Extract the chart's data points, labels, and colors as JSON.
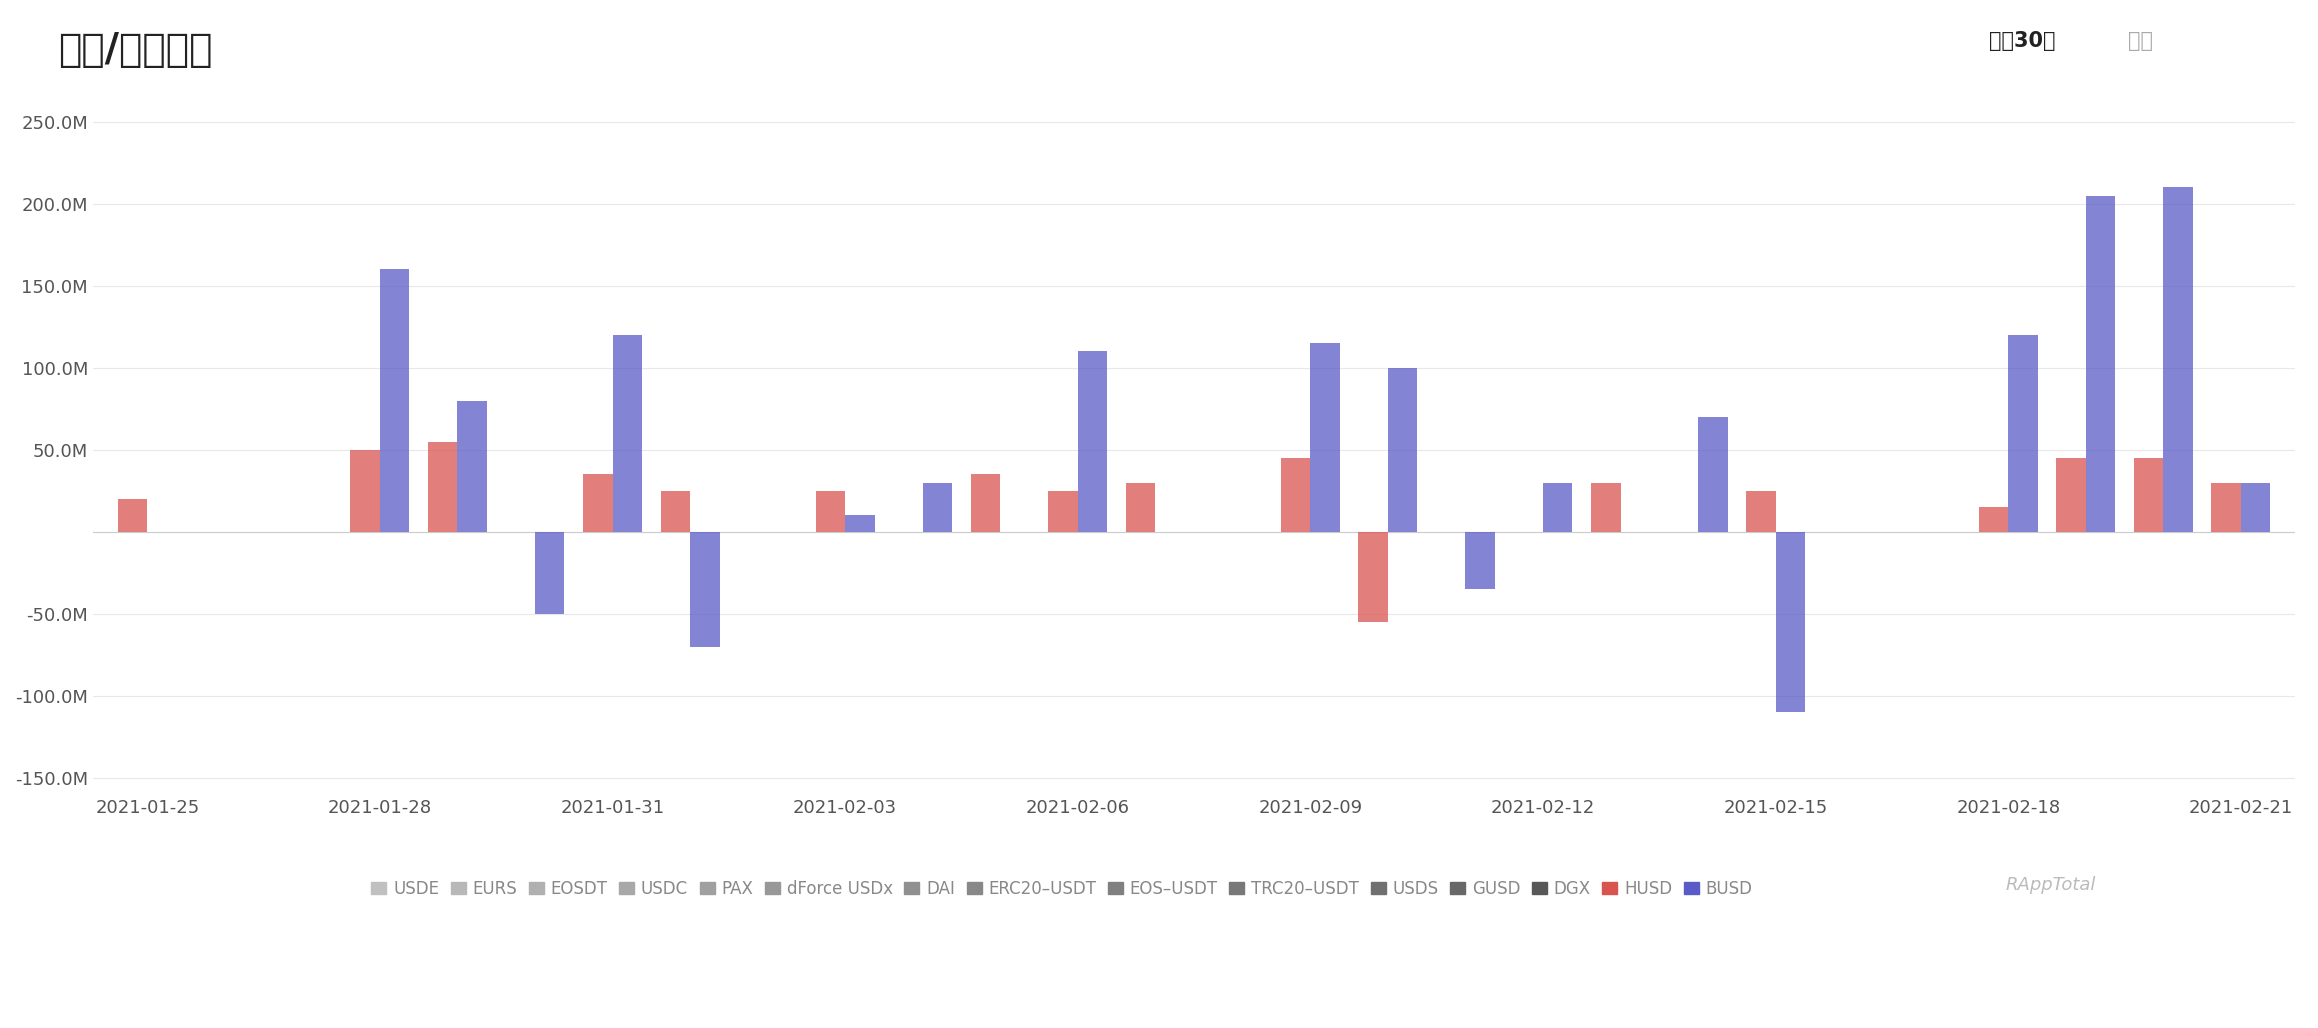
{
  "title": "增发/销毁趋势",
  "top_right_label_active": "最近30天",
  "top_right_label_inactive": "全部",
  "dates": [
    "2021-01-25",
    "2021-01-26",
    "2021-01-27",
    "2021-01-28",
    "2021-01-29",
    "2021-01-30",
    "2021-01-31",
    "2021-02-01",
    "2021-02-02",
    "2021-02-03",
    "2021-02-04",
    "2021-02-05",
    "2021-02-06",
    "2021-02-07",
    "2021-02-08",
    "2021-02-09",
    "2021-02-10",
    "2021-02-11",
    "2021-02-12",
    "2021-02-13",
    "2021-02-14",
    "2021-02-15",
    "2021-02-16",
    "2021-02-17",
    "2021-02-18",
    "2021-02-19",
    "2021-02-20",
    "2021-02-21"
  ],
  "xtick_labels": [
    "2021-01-25",
    "2021-01-28",
    "2021-01-31",
    "2021-02-03",
    "2021-02-06",
    "2021-02-09",
    "2021-02-12",
    "2021-02-15",
    "2021-02-18",
    "2021-02-21"
  ],
  "ylim": [
    -160000000,
    265000000
  ],
  "yticks": [
    -150000000,
    -100000000,
    -50000000,
    0,
    50000000,
    100000000,
    150000000,
    200000000,
    250000000
  ],
  "background_color": "#ffffff",
  "grid_color": "#e8e8e8",
  "husd_color": "#d9534f",
  "busd_color": "#5b5bc8",
  "husd_alpha": 0.75,
  "busd_alpha": 0.75,
  "HUSD": [
    20000000,
    0,
    0,
    50000000,
    55000000,
    0,
    35000000,
    25000000,
    0,
    25000000,
    0,
    35000000,
    25000000,
    30000000,
    0,
    45000000,
    -55000000,
    0,
    0,
    30000000,
    0,
    25000000,
    0,
    0,
    15000000,
    45000000,
    45000000,
    30000000
  ],
  "BUSD": [
    0,
    0,
    0,
    160000000,
    80000000,
    -50000000,
    120000000,
    -70000000,
    0,
    10000000,
    30000000,
    0,
    110000000,
    0,
    0,
    115000000,
    100000000,
    -35000000,
    30000000,
    0,
    70000000,
    -110000000,
    0,
    0,
    120000000,
    205000000,
    210000000,
    30000000
  ],
  "legend_items": [
    "USDE",
    "EURS",
    "EOSDT",
    "USDC",
    "PAX",
    "dForce USDx",
    "DAI",
    "ERC20–USDT",
    "EOS–USDT",
    "TRC20–USDT",
    "USDS",
    "GUSD",
    "DGX",
    "HUSD",
    "BUSD"
  ],
  "legend_colors": [
    "#c0c0c0",
    "#b8b8b8",
    "#b0b0b0",
    "#a8a8a8",
    "#a0a0a0",
    "#989898",
    "#909090",
    "#888888",
    "#808080",
    "#787878",
    "#707070",
    "#686868",
    "#585858",
    "#d9534f",
    "#5b5bc8"
  ],
  "watermark": "RAppTotal",
  "bar_width": 0.38
}
